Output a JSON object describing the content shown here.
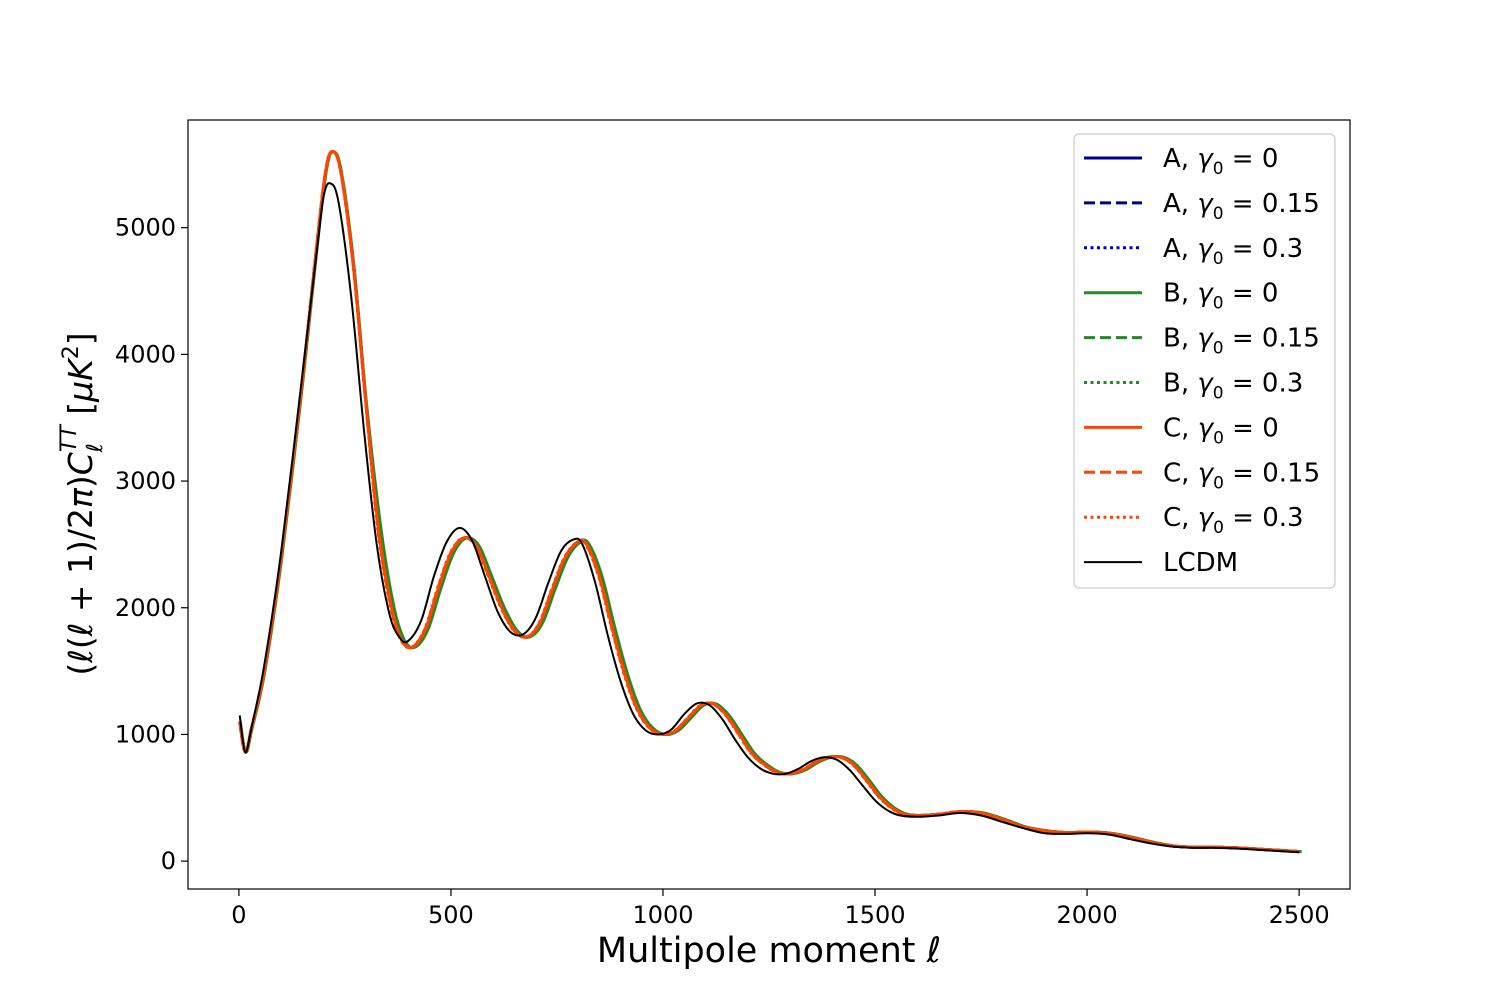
{
  "chart_data": {
    "type": "line",
    "xlabel": "Multipole moment ℓ",
    "ylabel": "(ℓ(ℓ + 1)/2π)C_ℓ^TT [μK²]",
    "xlim": [
      -120,
      2620
    ],
    "ylim": [
      -220,
      5850
    ],
    "xticks": [
      0,
      500,
      1000,
      1500,
      2000,
      2500
    ],
    "yticks": [
      0,
      1000,
      2000,
      3000,
      4000,
      5000
    ],
    "legend_position": "upper right",
    "grid": false,
    "model_curve": {
      "x": [
        2,
        15,
        30,
        60,
        100,
        150,
        185,
        205,
        220,
        240,
        270,
        300,
        330,
        360,
        385,
        410,
        440,
        470,
        500,
        530,
        560,
        590,
        620,
        650,
        680,
        710,
        740,
        770,
        800,
        820,
        850,
        880,
        910,
        940,
        970,
        1000,
        1030,
        1060,
        1090,
        1120,
        1150,
        1180,
        1210,
        1240,
        1270,
        1300,
        1330,
        1360,
        1390,
        1420,
        1450,
        1480,
        1510,
        1540,
        1570,
        1600,
        1650,
        1700,
        1750,
        1800,
        1850,
        1900,
        1950,
        2000,
        2050,
        2100,
        2150,
        2200,
        2250,
        2300,
        2350,
        2400,
        2450,
        2500
      ],
      "y": [
        1100,
        860,
        1050,
        1500,
        2400,
        3800,
        4900,
        5450,
        5600,
        5450,
        4700,
        3600,
        2600,
        2000,
        1740,
        1690,
        1830,
        2150,
        2430,
        2550,
        2490,
        2250,
        2000,
        1820,
        1770,
        1880,
        2150,
        2400,
        2520,
        2500,
        2250,
        1850,
        1480,
        1200,
        1050,
        1000,
        1030,
        1130,
        1230,
        1240,
        1150,
        1000,
        850,
        760,
        700,
        690,
        720,
        780,
        820,
        820,
        760,
        640,
        510,
        420,
        370,
        360,
        370,
        390,
        380,
        330,
        270,
        240,
        225,
        230,
        220,
        190,
        150,
        120,
        110,
        110,
        105,
        95,
        85,
        75
      ]
    },
    "lcdm_curve": {
      "x": [
        2,
        15,
        30,
        60,
        100,
        150,
        185,
        200,
        215,
        235,
        265,
        295,
        325,
        355,
        380,
        400,
        430,
        460,
        490,
        520,
        550,
        580,
        610,
        640,
        670,
        700,
        730,
        760,
        790,
        810,
        840,
        870,
        900,
        930,
        960,
        990,
        1020,
        1050,
        1080,
        1110,
        1140,
        1170,
        1200,
        1230,
        1260,
        1290,
        1320,
        1350,
        1380,
        1410,
        1440,
        1470,
        1500,
        1530,
        1560,
        1600,
        1650,
        1700,
        1750,
        1800,
        1850,
        1900,
        1950,
        2000,
        2050,
        2100,
        2150,
        2200,
        2250,
        2300,
        2350,
        2400,
        2450,
        2500
      ],
      "y": [
        1150,
        860,
        1060,
        1550,
        2450,
        3850,
        4850,
        5250,
        5350,
        5200,
        4450,
        3400,
        2500,
        1950,
        1760,
        1740,
        1900,
        2250,
        2520,
        2630,
        2530,
        2250,
        1970,
        1810,
        1790,
        1920,
        2200,
        2450,
        2540,
        2500,
        2200,
        1780,
        1420,
        1160,
        1030,
        1000,
        1040,
        1160,
        1245,
        1230,
        1120,
        960,
        820,
        730,
        690,
        690,
        730,
        790,
        820,
        800,
        720,
        600,
        480,
        400,
        360,
        350,
        360,
        380,
        360,
        310,
        260,
        220,
        215,
        220,
        210,
        175,
        140,
        115,
        105,
        105,
        100,
        90,
        80,
        70
      ]
    },
    "series": [
      {
        "name": "A, γ₀ = 0",
        "label_prefix": "A, ",
        "label_gamma": "γ",
        "label_sub": "0",
        "label_value": " = 0",
        "color": "#00008b",
        "dash": "solid",
        "x_shift": 2,
        "y_scale": 1.0
      },
      {
        "name": "A, γ₀ = 0.15",
        "label_prefix": "A, ",
        "label_gamma": "γ",
        "label_sub": "0",
        "label_value": " = 0.15",
        "color": "#00008b",
        "dash": "dashed",
        "x_shift": 1,
        "y_scale": 1.0
      },
      {
        "name": "A, γ₀ = 0.3",
        "label_prefix": "A, ",
        "label_gamma": "γ",
        "label_sub": "0",
        "label_value": " = 0.3",
        "color": "#0000cd",
        "dash": "dotted",
        "x_shift": 0,
        "y_scale": 1.0
      },
      {
        "name": "B, γ₀ = 0",
        "label_prefix": "B, ",
        "label_gamma": "γ",
        "label_sub": "0",
        "label_value": " = 0",
        "color": "#228b22",
        "dash": "solid",
        "x_shift": 6,
        "y_scale": 1.0
      },
      {
        "name": "B, γ₀ = 0.15",
        "label_prefix": "B, ",
        "label_gamma": "γ",
        "label_sub": "0",
        "label_value": " = 0.15",
        "color": "#228b22",
        "dash": "dashed",
        "x_shift": 4,
        "y_scale": 1.0
      },
      {
        "name": "B, γ₀ = 0.3",
        "label_prefix": "B, ",
        "label_gamma": "γ",
        "label_sub": "0",
        "label_value": " = 0.3",
        "color": "#228b22",
        "dash": "dotted",
        "x_shift": 3,
        "y_scale": 1.0
      },
      {
        "name": "C, γ₀ = 0",
        "label_prefix": "C, ",
        "label_gamma": "γ",
        "label_sub": "0",
        "label_value": " = 0",
        "color": "#ff4500",
        "dash": "solid",
        "x_shift": 0,
        "y_scale": 1.0
      },
      {
        "name": "C, γ₀ = 0.15",
        "label_prefix": "C, ",
        "label_gamma": "γ",
        "label_sub": "0",
        "label_value": " = 0.15",
        "color": "#ff4500",
        "dash": "dashed",
        "x_shift": -1,
        "y_scale": 1.0
      },
      {
        "name": "C, γ₀ = 0.3",
        "label_prefix": "C, ",
        "label_gamma": "γ",
        "label_sub": "0",
        "label_value": " = 0.3",
        "color": "#ff4500",
        "dash": "dotted",
        "x_shift": -2,
        "y_scale": 1.0
      },
      {
        "name": "LCDM",
        "label_prefix": "LCDM",
        "label_gamma": "",
        "label_sub": "",
        "label_value": "",
        "color": "#000000",
        "dash": "solid",
        "lcdm": true
      }
    ]
  }
}
